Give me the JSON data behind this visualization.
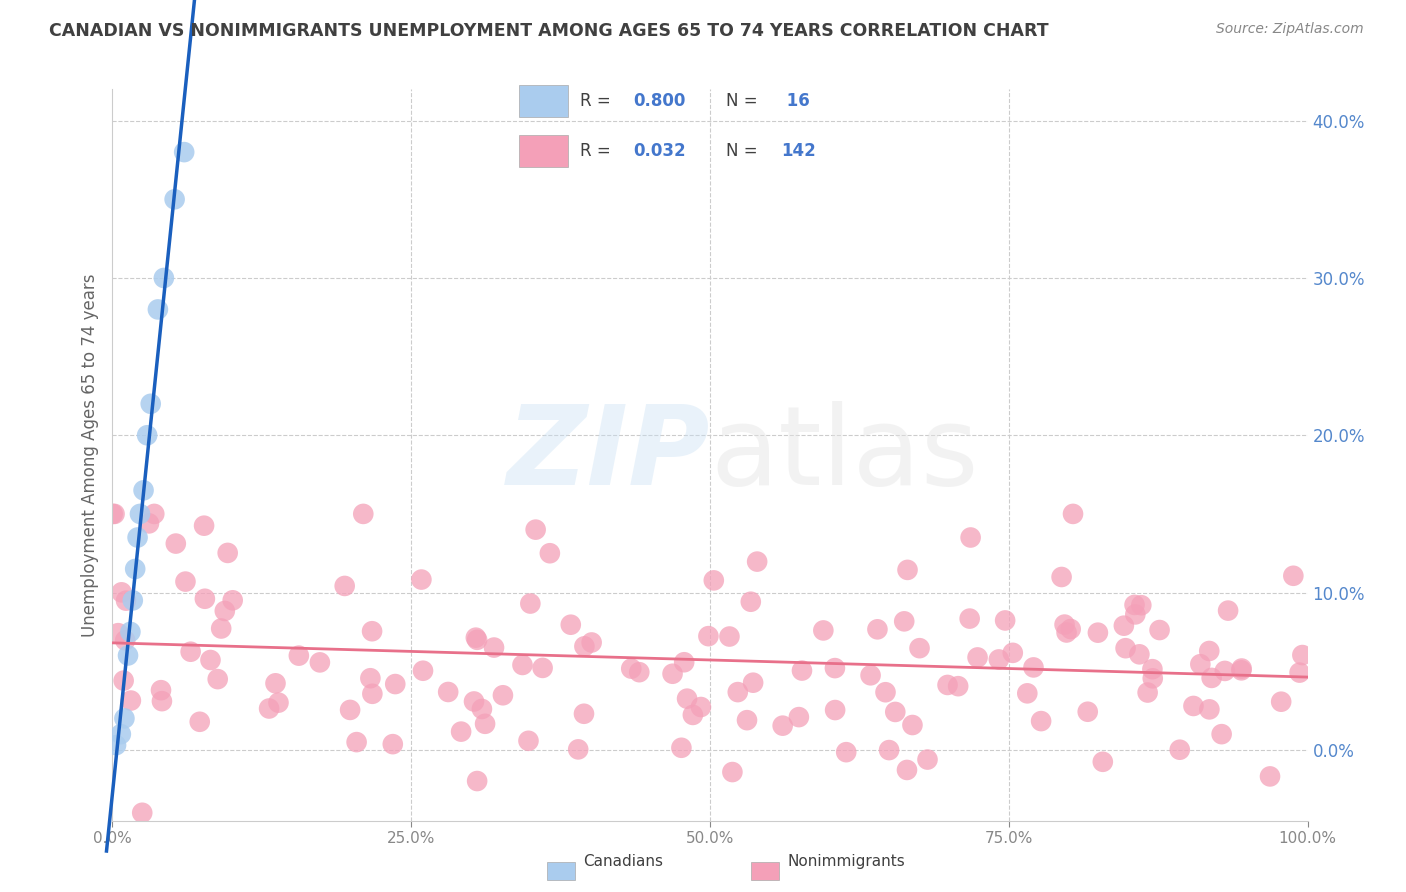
{
  "title": "CANADIAN VS NONIMMIGRANTS UNEMPLOYMENT AMONG AGES 65 TO 74 YEARS CORRELATION CHART",
  "source": "Source: ZipAtlas.com",
  "ylabel": "Unemployment Among Ages 65 to 74 years",
  "xlim": [
    0,
    1.0
  ],
  "ylim": [
    -0.045,
    0.42
  ],
  "yticks": [
    0.0,
    0.1,
    0.2,
    0.3,
    0.4
  ],
  "xticks": [
    0.0,
    0.25,
    0.5,
    0.75,
    1.0
  ],
  "background_color": "#ffffff",
  "canadian_color": "#aaccee",
  "nonimm_color": "#f4a0b8",
  "canadian_line_color": "#1a5fbe",
  "nonimm_line_color": "#e8708a",
  "grid_color": "#cccccc",
  "title_color": "#404040",
  "axis_label_color": "#5588cc",
  "legend_blue": "#4477cc"
}
